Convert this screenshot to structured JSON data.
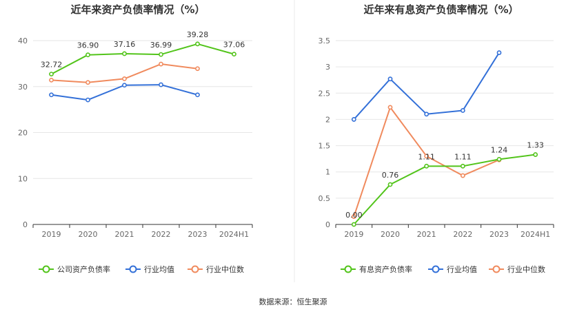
{
  "source": "数据来源：恒生聚源",
  "chart_data": [
    {
      "type": "line",
      "title": "近年来资产负债率情况（%）",
      "categories": [
        "2019",
        "2020",
        "2021",
        "2022",
        "2023",
        "2024H1"
      ],
      "yticks": [
        "0",
        "10",
        "20",
        "30",
        "40"
      ],
      "ylim": [
        0,
        40
      ],
      "series": [
        {
          "name": "公司资产负债率",
          "color": "#52c41a",
          "values": [
            32.72,
            36.9,
            37.16,
            36.99,
            39.28,
            37.06
          ],
          "labels": [
            "32.72",
            "36.90",
            "37.16",
            "36.99",
            "39.28",
            "37.06"
          ]
        },
        {
          "name": "行业均值",
          "color": "#3370d8",
          "values": [
            28.2,
            27.1,
            30.3,
            30.4,
            28.2,
            null
          ]
        },
        {
          "name": "行业中位数",
          "color": "#f08a5d",
          "values": [
            31.4,
            30.9,
            31.7,
            34.9,
            33.9,
            null
          ]
        }
      ]
    },
    {
      "type": "line",
      "title": "近年来有息资产负债率情况（%）",
      "categories": [
        "2019",
        "2020",
        "2021",
        "2022",
        "2023",
        "2024H1"
      ],
      "yticks": [
        "0",
        "0.5",
        "1",
        "1.5",
        "2",
        "2.5",
        "3",
        "3.5"
      ],
      "ylim": [
        0,
        3.5
      ],
      "series": [
        {
          "name": "有息资产负债率",
          "color": "#52c41a",
          "values": [
            0.0,
            0.76,
            1.11,
            1.11,
            1.24,
            1.33
          ],
          "labels": [
            "0.00",
            "0.76",
            "1.11",
            "1.11",
            "1.24",
            "1.33"
          ]
        },
        {
          "name": "行业均值",
          "color": "#3370d8",
          "values": [
            2.0,
            2.77,
            2.1,
            2.17,
            3.27,
            null
          ]
        },
        {
          "name": "行业中位数",
          "color": "#f08a5d",
          "values": [
            0.15,
            2.23,
            1.3,
            0.93,
            1.23,
            null
          ]
        }
      ]
    }
  ]
}
